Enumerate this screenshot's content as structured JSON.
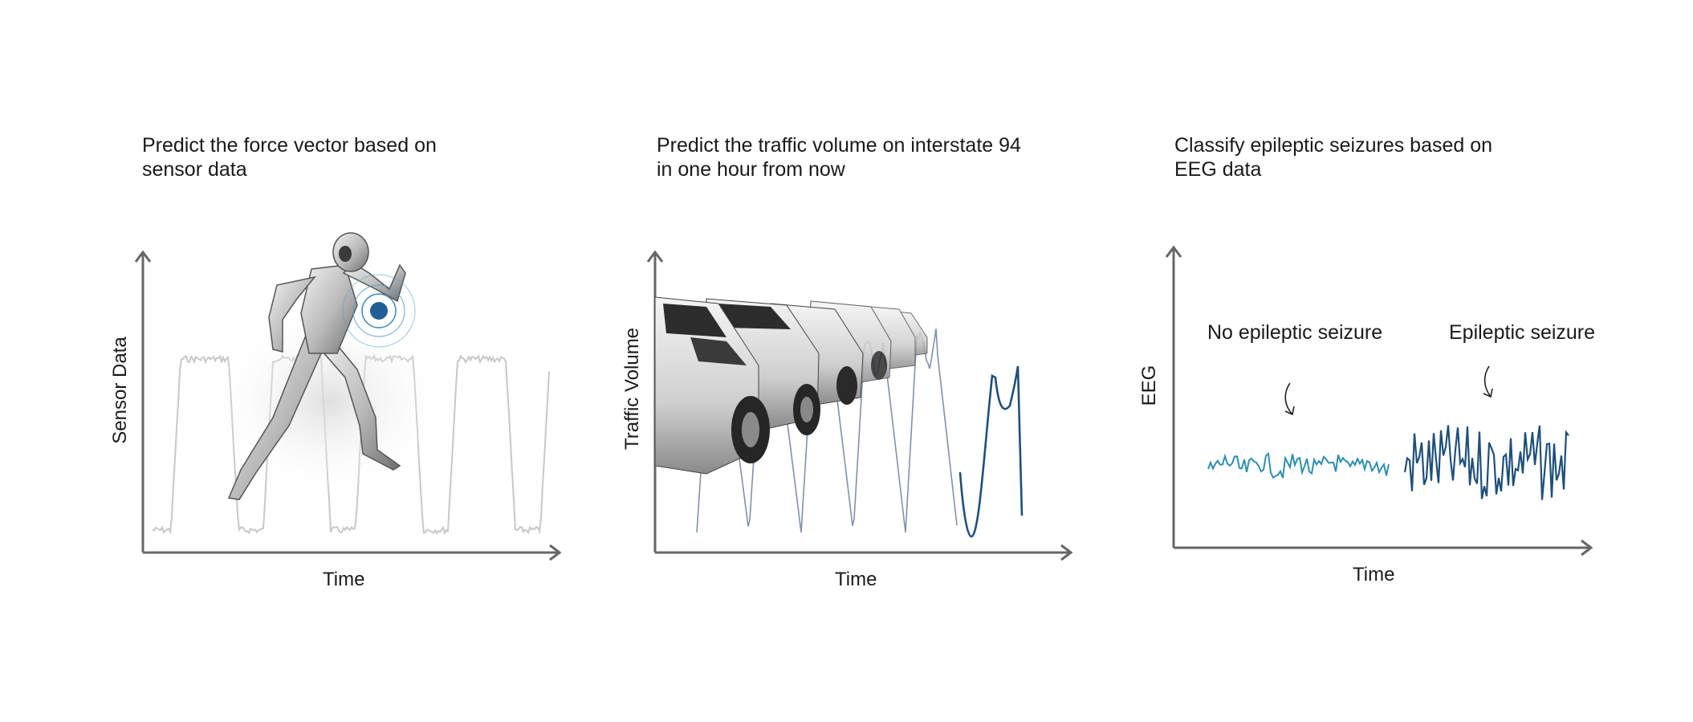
{
  "panels": [
    {
      "title_line1": "Predict the force vector based on",
      "title_line2": "sensor data",
      "xlabel": "Time",
      "ylabel": "Sensor Data",
      "illustration": "running-robot-icon"
    },
    {
      "title_line1": "Predict the traffic volume on interstate 94",
      "title_line2": "in one hour from now",
      "xlabel": "Time",
      "ylabel": "Traffic Volume",
      "illustration": "car-queue-icon"
    },
    {
      "title_line1": "Classify epileptic seizures based on",
      "title_line2": "EEG data",
      "xlabel": "Time",
      "ylabel": "EEG",
      "annot_left": "No epileptic seizure",
      "annot_right": "Epileptic seizure"
    }
  ],
  "colors": {
    "axis": "#666666",
    "signal_light": "#c8c8c8",
    "traffic_history": "#7f92aa",
    "forecast": "#1f4f7a",
    "eeg_normal": "#2e8fb3",
    "eeg_seizure": "#1f4f7a",
    "sensor_dot": "#1f5f93"
  }
}
